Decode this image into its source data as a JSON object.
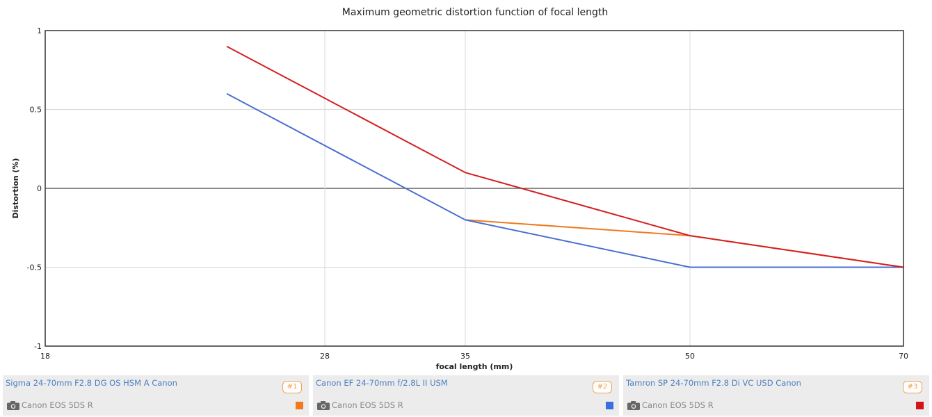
{
  "chart_data": {
    "type": "line",
    "title": "Maximum geometric distortion function of focal length",
    "xlabel": "focal length (mm)",
    "ylabel": "Distortion (%)",
    "x_ticks": [
      18,
      28,
      35,
      50,
      70
    ],
    "y_ticks": [
      1,
      0.5,
      0,
      -0.5,
      -1
    ],
    "y_tick_labels": [
      "1",
      "0.5",
      "0",
      "-0.5",
      "-1"
    ],
    "xlim": [
      18,
      70
    ],
    "ylim": [
      -1,
      1
    ],
    "grid": true,
    "series": [
      {
        "name": "Sigma 24-70mm F2.8 DG OS HSM A Canon",
        "color": "#f07a1e",
        "points": [
          [
            35,
            -0.2
          ],
          [
            50,
            -0.3
          ],
          [
            70,
            -0.5
          ]
        ]
      },
      {
        "name": "Canon EF 24-70mm f/2.8L II USM",
        "color": "#4a6fd0",
        "points": [
          [
            24,
            0.6
          ],
          [
            35,
            -0.2
          ],
          [
            50,
            -0.5
          ],
          [
            70,
            -0.5
          ]
        ]
      },
      {
        "name": "Tamron SP 24-70mm F2.8 Di VC USD Canon",
        "color": "#d42020",
        "points": [
          [
            24,
            0.9
          ],
          [
            35,
            0.1
          ],
          [
            50,
            -0.3
          ],
          [
            70,
            -0.5
          ]
        ]
      }
    ]
  },
  "legend": [
    {
      "lens": "Sigma 24-70mm F2.8 DG OS HSM A Canon",
      "num": "#1",
      "camera": "Canon EOS 5DS R",
      "color": "#f07a1e"
    },
    {
      "lens": "Canon EF 24-70mm f/2.8L II USM",
      "num": "#2",
      "camera": "Canon EOS 5DS R",
      "color": "#3a6fe0"
    },
    {
      "lens": "Tamron SP 24-70mm F2.8 Di VC USD Canon",
      "num": "#3",
      "camera": "Canon EOS 5DS R",
      "color": "#d41414"
    }
  ]
}
